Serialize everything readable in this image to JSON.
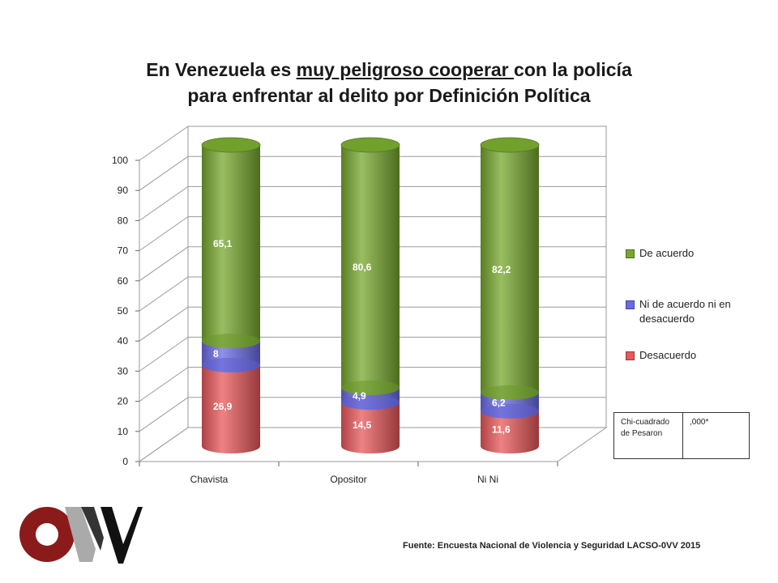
{
  "title": {
    "line1_pre": "En Venezuela es ",
    "line1_underlined": "muy peligroso cooperar ",
    "line1_post": "con la policía",
    "line2": "para enfrentar al delito por Definición Política"
  },
  "chart_data": {
    "type": "bar",
    "stacked": true,
    "style": "3d-cylinder",
    "categories": [
      "Chavista",
      "Opositor",
      "Ni Ni"
    ],
    "series": [
      {
        "name": "Desacuerdo",
        "color": "#e8585a",
        "values": [
          26.9,
          14.5,
          11.6
        ],
        "labels": [
          "26,9",
          "14,5",
          "11,6"
        ]
      },
      {
        "name": "Ni de acuerdo ni en desacuerdo",
        "color": "#6a6ae6",
        "values": [
          8,
          4.9,
          6.2
        ],
        "labels": [
          "8",
          "4,9",
          "6,2"
        ]
      },
      {
        "name": "De acuerdo",
        "color": "#77a82e",
        "values": [
          65.1,
          80.6,
          82.2
        ],
        "labels": [
          "65,1",
          "80,6",
          "82,2"
        ]
      }
    ],
    "ylim": [
      0,
      100
    ],
    "yticks": [
      0,
      10,
      20,
      30,
      40,
      50,
      60,
      70,
      80,
      90,
      100
    ],
    "grid": true,
    "legend_position": "right",
    "legend_order": [
      "De acuerdo",
      "Ni de acuerdo ni en desacuerdo",
      "Desacuerdo"
    ]
  },
  "legend": {
    "items": [
      {
        "label": "De acuerdo",
        "color": "#77a82e"
      },
      {
        "label": "Ni de acuerdo ni en desacuerdo",
        "color": "#6a6ae6"
      },
      {
        "label": "Desacuerdo",
        "color": "#e8585a"
      }
    ]
  },
  "stats_box": {
    "label": "Chi-cuadrado de Pesaron",
    "value": ",000*"
  },
  "source": "Fuente: Encuesta Nacional de Violencia y Seguridad LACSO-0VV 2015",
  "logo": {
    "letters": "OVV",
    "colors": [
      "#8b1a1a",
      "#aaaaaa",
      "#111111"
    ]
  }
}
